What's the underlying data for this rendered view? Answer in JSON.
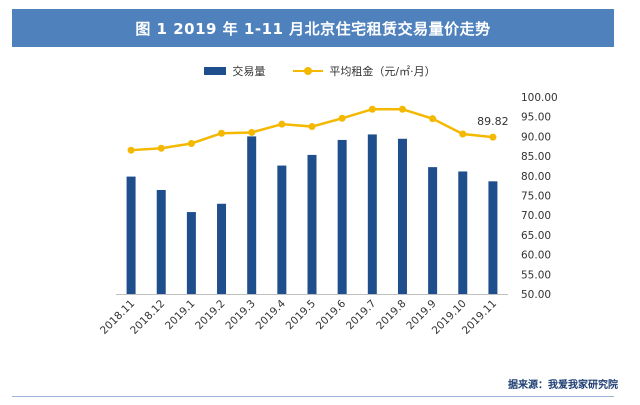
{
  "title": "图 1    2019 年 1-11 月北京住宅租赁交易量价走势",
  "legend": {
    "bar_label": "交易量",
    "line_label": "平均租金（元/㎡·月）"
  },
  "source": "据来源：我爱我家研究院",
  "colors": {
    "bar": "#1f4e8c",
    "line": "#f5b800",
    "title_bg": "#4f81bd"
  },
  "chart_data": {
    "type": "bar",
    "categories": [
      "2018.11",
      "2018.12",
      "2019.1",
      "2019.2",
      "2019.3",
      "2019.4",
      "2019.5",
      "2019.6",
      "2019.7",
      "2019.8",
      "2019.9",
      "2019.10",
      "2019.11"
    ],
    "series": [
      {
        "name": "交易量",
        "type": "bar",
        "axis": "none",
        "values": [
          79.8,
          76.4,
          70.8,
          72.9,
          90.0,
          82.6,
          85.3,
          89.1,
          90.5,
          89.4,
          82.2,
          81.1,
          78.6
        ]
      },
      {
        "name": "平均租金（元/㎡·月）",
        "type": "line",
        "axis": "right",
        "values": [
          86.5,
          87.0,
          88.2,
          90.8,
          91.0,
          93.1,
          92.5,
          94.6,
          96.9,
          96.9,
          94.5,
          90.6,
          89.82
        ]
      }
    ],
    "y_right": {
      "ylim": [
        50,
        100
      ],
      "ticks": [
        "100.00",
        "95.00",
        "90.00",
        "85.00",
        "80.00",
        "75.00",
        "70.00",
        "65.00",
        "60.00",
        "55.00",
        "50.00"
      ]
    },
    "data_labels": [
      {
        "index": 12,
        "text": "89.82"
      }
    ],
    "left_axis_visible": false,
    "grid": false,
    "legend_position": "top"
  }
}
